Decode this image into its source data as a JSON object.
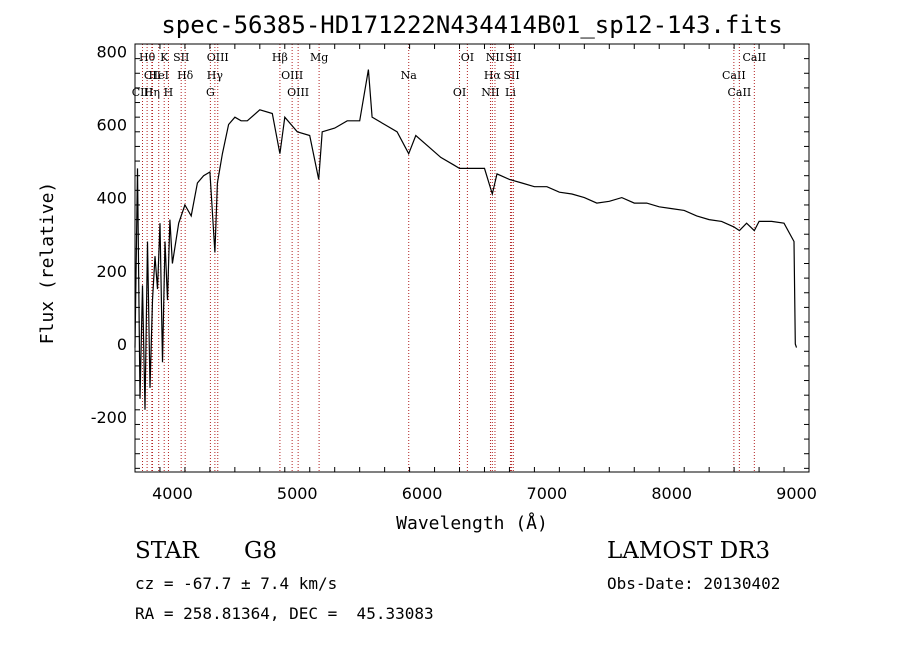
{
  "chart_data": {
    "type": "line",
    "title": "spec-56385-HD171222N434414B01_sp12-143.fits",
    "xlabel": "Wavelength (Å)",
    "ylabel": "Flux (relative)",
    "xlim": [
      3700,
      9100
    ],
    "ylim": [
      -350,
      820
    ],
    "xticks": [
      4000,
      5000,
      6000,
      7000,
      8000,
      9000
    ],
    "yticks": [
      -200,
      0,
      200,
      400,
      600,
      800
    ],
    "series": [
      {
        "name": "spectrum",
        "x": [
          3700,
          3720,
          3740,
          3760,
          3780,
          3800,
          3820,
          3840,
          3860,
          3880,
          3900,
          3920,
          3940,
          3960,
          3980,
          4000,
          4050,
          4100,
          4150,
          4200,
          4250,
          4300,
          4340,
          4360,
          4400,
          4450,
          4500,
          4550,
          4600,
          4700,
          4800,
          4861,
          4900,
          5000,
          5100,
          5172,
          5200,
          5300,
          5400,
          5500,
          5570,
          5600,
          5700,
          5800,
          5893,
          5950,
          6050,
          6150,
          6250,
          6300,
          6400,
          6500,
          6563,
          6600,
          6700,
          6800,
          6900,
          7000,
          7100,
          7200,
          7300,
          7400,
          7500,
          7600,
          7700,
          7800,
          7900,
          8000,
          8100,
          8200,
          8300,
          8400,
          8498,
          8542,
          8600,
          8662,
          8700,
          8800,
          8900,
          8980,
          8990,
          9000
        ],
        "y": [
          -10,
          480,
          -150,
          160,
          -180,
          280,
          -120,
          120,
          240,
          150,
          330,
          -50,
          280,
          120,
          340,
          220,
          330,
          380,
          350,
          440,
          460,
          470,
          250,
          440,
          520,
          600,
          620,
          610,
          610,
          640,
          630,
          520,
          620,
          580,
          570,
          450,
          580,
          590,
          610,
          610,
          750,
          620,
          600,
          580,
          520,
          570,
          540,
          510,
          490,
          480,
          480,
          480,
          410,
          465,
          450,
          440,
          430,
          430,
          415,
          410,
          400,
          385,
          390,
          400,
          385,
          385,
          375,
          370,
          365,
          350,
          340,
          335,
          320,
          310,
          330,
          310,
          335,
          335,
          330,
          280,
          0,
          -10
        ]
      }
    ],
    "lines": [
      {
        "label": "Hθ",
        "x": 3797
      },
      {
        "label": "CII",
        "x": 3840
      },
      {
        "label": "CIII",
        "x": 3760
      },
      {
        "label": "K",
        "x": 3934
      },
      {
        "label": "HeI",
        "x": 3890
      },
      {
        "label": "Hη",
        "x": 3835
      },
      {
        "label": "SII",
        "x": 4070
      },
      {
        "label": "Hδ",
        "x": 4102
      },
      {
        "label": "H",
        "x": 3968
      },
      {
        "label": "OIII",
        "x": 4363
      },
      {
        "label": "Hγ",
        "x": 4340
      },
      {
        "label": "G",
        "x": 4304
      },
      {
        "label": "Hβ",
        "x": 4861
      },
      {
        "label": "OIII",
        "x": 4959
      },
      {
        "label": "OIII",
        "x": 5007
      },
      {
        "label": "Mg",
        "x": 5175
      },
      {
        "label": "Na",
        "x": 5893
      },
      {
        "label": "OI",
        "x": 6300
      },
      {
        "label": "OI",
        "x": 6363
      },
      {
        "label": "Hα",
        "x": 6563
      },
      {
        "label": "NII",
        "x": 6548
      },
      {
        "label": "NII",
        "x": 6584
      },
      {
        "label": "SII",
        "x": 6717
      },
      {
        "label": "Li",
        "x": 6708
      },
      {
        "label": "SII",
        "x": 6731
      },
      {
        "label": "CaII",
        "x": 8498
      },
      {
        "label": "CaII",
        "x": 8542
      },
      {
        "label": "CaII",
        "x": 8662
      }
    ]
  },
  "info": {
    "class": "STAR",
    "subclass": "G8",
    "survey": "LAMOST DR3",
    "cz": "cz = -67.7 ± 7.4 km/s",
    "obs_date": "Obs-Date: 20130402",
    "coords": "RA = 258.81364, DEC =  45.33083"
  },
  "colors": {
    "line_marker": "#b22222",
    "spectrum": "#000000",
    "text": "#000000"
  }
}
